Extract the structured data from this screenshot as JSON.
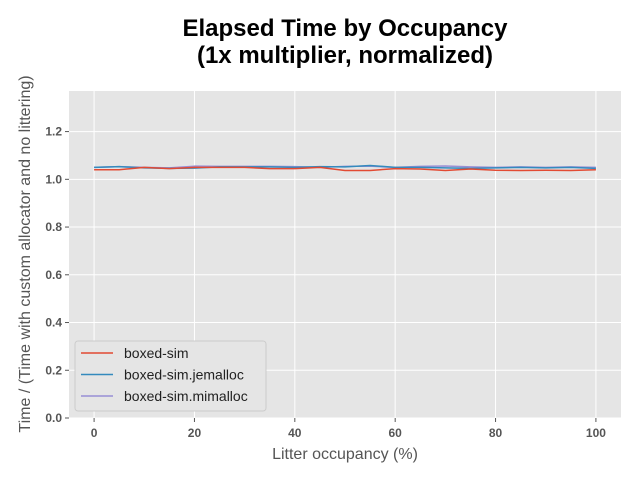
{
  "chart_data": {
    "type": "line",
    "title": "Elapsed Time by Occupancy\n(1x multiplier, normalized)",
    "title_lines": [
      "Elapsed Time by Occupancy",
      "(1x multiplier, normalized)"
    ],
    "xlabel": "Litter occupancy (%)",
    "ylabel": "Time / (Time with custom allocator and no littering)",
    "xlim": [
      -5,
      105
    ],
    "ylim": [
      0,
      1.37
    ],
    "xticks": [
      0,
      20,
      40,
      60,
      80,
      100
    ],
    "yticks": [
      0.0,
      0.2,
      0.4,
      0.6,
      0.8,
      1.0,
      1.2
    ],
    "xtick_labels": [
      "0",
      "20",
      "40",
      "60",
      "80",
      "100"
    ],
    "ytick_labels": [
      "0.0",
      "0.2",
      "0.4",
      "0.6",
      "0.8",
      "1.0",
      "1.2"
    ],
    "grid": true,
    "legend_placement": "lower-left",
    "x": [
      0,
      5,
      10,
      15,
      20,
      25,
      30,
      35,
      40,
      45,
      50,
      55,
      60,
      65,
      70,
      75,
      80,
      85,
      90,
      95,
      100
    ],
    "series": [
      {
        "name": "boxed-sim",
        "color": "#e24a33",
        "values": [
          1.04,
          1.04,
          1.05,
          1.045,
          1.05,
          1.05,
          1.05,
          1.045,
          1.045,
          1.05,
          1.037,
          1.037,
          1.045,
          1.043,
          1.037,
          1.043,
          1.038,
          1.037,
          1.038,
          1.037,
          1.04
        ]
      },
      {
        "name": "boxed-sim.jemalloc",
        "color": "#348abd",
        "values": [
          1.05,
          1.053,
          1.048,
          1.046,
          1.047,
          1.052,
          1.052,
          1.052,
          1.05,
          1.053,
          1.052,
          1.058,
          1.05,
          1.05,
          1.048,
          1.046,
          1.048,
          1.05,
          1.048,
          1.05,
          1.046
        ]
      },
      {
        "name": "boxed-sim.mimalloc",
        "color": "#988ed5",
        "values": [
          1.05,
          1.053,
          1.05,
          1.048,
          1.055,
          1.054,
          1.054,
          1.054,
          1.053,
          1.05,
          1.054,
          1.055,
          1.05,
          1.054,
          1.056,
          1.052,
          1.05,
          1.052,
          1.05,
          1.052,
          1.05
        ]
      }
    ]
  },
  "colors": {
    "plot_background": "#e5e5e5",
    "grid": "#ffffff",
    "axis_text": "#555555"
  }
}
